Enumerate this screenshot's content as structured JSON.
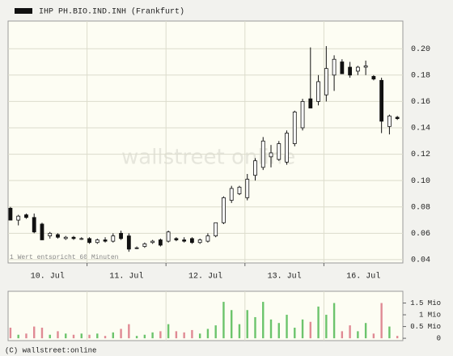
{
  "chart_data": {
    "type": "candlestick",
    "legend": "IHP PH.BIO.IND.INH (Frankfurt)",
    "note": "1 Wert entspricht 60 Minuten",
    "watermark": "wallstreet online",
    "footer": "(C) wallstreet:online",
    "days": [
      "10. Jul",
      "11. Jul",
      "12. Jul",
      "13. Jul",
      "16. Jul"
    ],
    "up_color": "#ffffff",
    "down_color": "#111111",
    "ylim": [
      0.0375,
      0.221
    ],
    "yticks": [
      {
        "value": 0.04,
        "label": "0.04"
      },
      {
        "value": 0.06,
        "label": "0.06"
      },
      {
        "value": 0.08,
        "label": "0.08"
      },
      {
        "value": 0.1,
        "label": "0.10"
      },
      {
        "value": 0.12,
        "label": "0.12"
      },
      {
        "value": 0.14,
        "label": "0.14"
      },
      {
        "value": 0.16,
        "label": "0.16"
      },
      {
        "value": 0.18,
        "label": "0.18"
      },
      {
        "value": 0.2,
        "label": "0.20"
      }
    ],
    "grid": true,
    "open": [
      0.079,
      0.07,
      0.074,
      0.072,
      0.067,
      0.058,
      0.059,
      0.056,
      0.057,
      0.056,
      0.056,
      0.053,
      0.055,
      0.054,
      0.06,
      0.058,
      0.049,
      0.05,
      0.053,
      0.055,
      0.054,
      0.056,
      0.055,
      0.056,
      0.053,
      0.054,
      0.058,
      0.068,
      0.085,
      0.09,
      0.087,
      0.104,
      0.11,
      0.118,
      0.116,
      0.114,
      0.128,
      0.14,
      0.162,
      0.16,
      0.165,
      0.18,
      0.19,
      0.186,
      0.183,
      0.186,
      0.179,
      0.176,
      0.141,
      0.148
    ],
    "high": [
      0.08,
      0.074,
      0.075,
      0.075,
      0.068,
      0.061,
      0.06,
      0.058,
      0.058,
      0.057,
      0.057,
      0.056,
      0.057,
      0.06,
      0.062,
      0.06,
      0.05,
      0.053,
      0.055,
      0.056,
      0.062,
      0.057,
      0.057,
      0.057,
      0.056,
      0.06,
      0.068,
      0.088,
      0.096,
      0.096,
      0.105,
      0.117,
      0.133,
      0.127,
      0.13,
      0.138,
      0.153,
      0.162,
      0.201,
      0.18,
      0.202,
      0.195,
      0.192,
      0.19,
      0.187,
      0.191,
      0.18,
      0.178,
      0.15,
      0.149
    ],
    "low": [
      0.07,
      0.066,
      0.071,
      0.06,
      0.055,
      0.056,
      0.056,
      0.055,
      0.055,
      0.055,
      0.052,
      0.052,
      0.053,
      0.053,
      0.055,
      0.046,
      0.048,
      0.049,
      0.052,
      0.05,
      0.053,
      0.054,
      0.053,
      0.052,
      0.052,
      0.053,
      0.057,
      0.067,
      0.083,
      0.089,
      0.085,
      0.1,
      0.108,
      0.11,
      0.115,
      0.112,
      0.126,
      0.138,
      0.155,
      0.157,
      0.16,
      0.168,
      0.181,
      0.178,
      0.18,
      0.18,
      0.176,
      0.136,
      0.135,
      0.146
    ],
    "close": [
      0.07,
      0.073,
      0.072,
      0.061,
      0.055,
      0.06,
      0.057,
      0.057,
      0.056,
      0.056,
      0.053,
      0.055,
      0.054,
      0.058,
      0.056,
      0.048,
      0.049,
      0.052,
      0.054,
      0.051,
      0.061,
      0.055,
      0.054,
      0.053,
      0.055,
      0.058,
      0.068,
      0.087,
      0.094,
      0.095,
      0.101,
      0.115,
      0.13,
      0.121,
      0.128,
      0.136,
      0.152,
      0.16,
      0.155,
      0.175,
      0.185,
      0.192,
      0.181,
      0.18,
      0.186,
      0.187,
      0.177,
      0.145,
      0.149,
      0.147
    ],
    "volume": {
      "values": [
        0.45,
        0.15,
        0.2,
        0.5,
        0.45,
        0.15,
        0.3,
        0.2,
        0.15,
        0.2,
        0.15,
        0.2,
        0.1,
        0.25,
        0.4,
        0.6,
        0.1,
        0.15,
        0.25,
        0.3,
        0.6,
        0.3,
        0.25,
        0.35,
        0.2,
        0.4,
        0.55,
        1.55,
        1.2,
        0.6,
        1.2,
        0.9,
        1.55,
        0.8,
        0.65,
        1.0,
        0.45,
        0.8,
        0.7,
        1.35,
        1.0,
        1.5,
        0.3,
        0.55,
        0.3,
        0.65,
        0.2,
        1.5,
        0.5,
        0.1
      ],
      "up_color": "#6cc46c",
      "down_color": "#e08a94",
      "ylim": [
        -0.1,
        2.0
      ],
      "yticks": [
        0,
        {
          "value": 0.5,
          "label": "0.5 Mio"
        },
        {
          "value": 1,
          "label": "1 Mio"
        },
        {
          "value": 1.5,
          "label": "1.5 Mio"
        }
      ]
    }
  }
}
